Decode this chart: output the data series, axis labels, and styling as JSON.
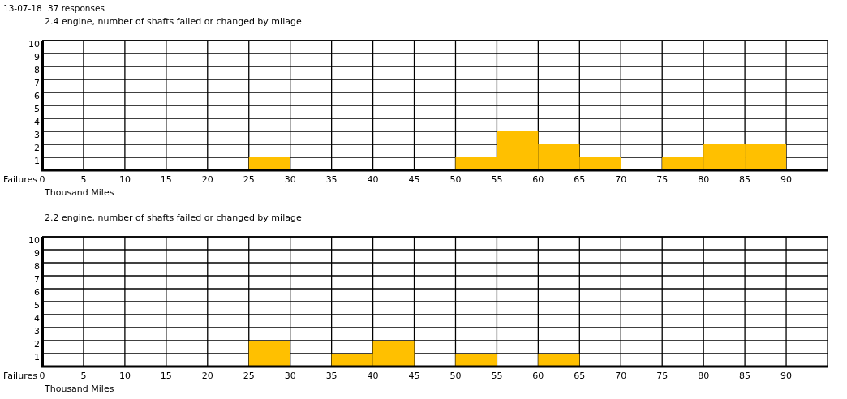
{
  "chart_data": [
    {
      "type": "histogram",
      "title": "2.4 engine, number of shafts failed or changed by milage",
      "annotations": [
        "13-07-18",
        "37 responses"
      ],
      "xlabel": "Thousand Miles",
      "ylabel": "Failures",
      "bins": [
        0,
        5,
        10,
        15,
        20,
        25,
        30,
        35,
        40,
        45,
        50,
        55,
        60,
        65,
        70,
        75,
        80,
        85,
        90,
        95
      ],
      "values": [
        0,
        0,
        0,
        0,
        0,
        1,
        0,
        0,
        0,
        0,
        1,
        3,
        2,
        1,
        0,
        1,
        2,
        2,
        0
      ],
      "color": "#ffc000",
      "xlim": [
        0,
        95
      ],
      "xticks": [
        0,
        5,
        10,
        15,
        20,
        25,
        30,
        35,
        40,
        45,
        50,
        55,
        60,
        65,
        70,
        75,
        80,
        85,
        90
      ],
      "ylim": [
        0,
        10
      ],
      "yticks": [
        1,
        2,
        3,
        4,
        5,
        6,
        7,
        8,
        9,
        10
      ],
      "grid": true
    },
    {
      "type": "histogram",
      "title": "2.2 engine, number of shafts failed or changed by milage",
      "xlabel": "Thousand Miles",
      "ylabel": "Failures",
      "bins": [
        0,
        5,
        10,
        15,
        20,
        25,
        30,
        35,
        40,
        45,
        50,
        55,
        60,
        65,
        70,
        75,
        80,
        85,
        90,
        95
      ],
      "values": [
        0,
        0,
        0,
        0,
        0,
        2,
        0,
        1,
        2,
        0,
        1,
        0,
        1,
        0,
        0,
        0,
        0,
        0,
        0
      ],
      "color": "#ffc000",
      "xlim": [
        0,
        95
      ],
      "xticks": [
        0,
        5,
        10,
        15,
        20,
        25,
        30,
        35,
        40,
        45,
        50,
        55,
        60,
        65,
        70,
        75,
        80,
        85,
        90
      ],
      "ylim": [
        0,
        10
      ],
      "yticks": [
        1,
        2,
        3,
        4,
        5,
        6,
        7,
        8,
        9,
        10
      ],
      "grid": true
    }
  ]
}
